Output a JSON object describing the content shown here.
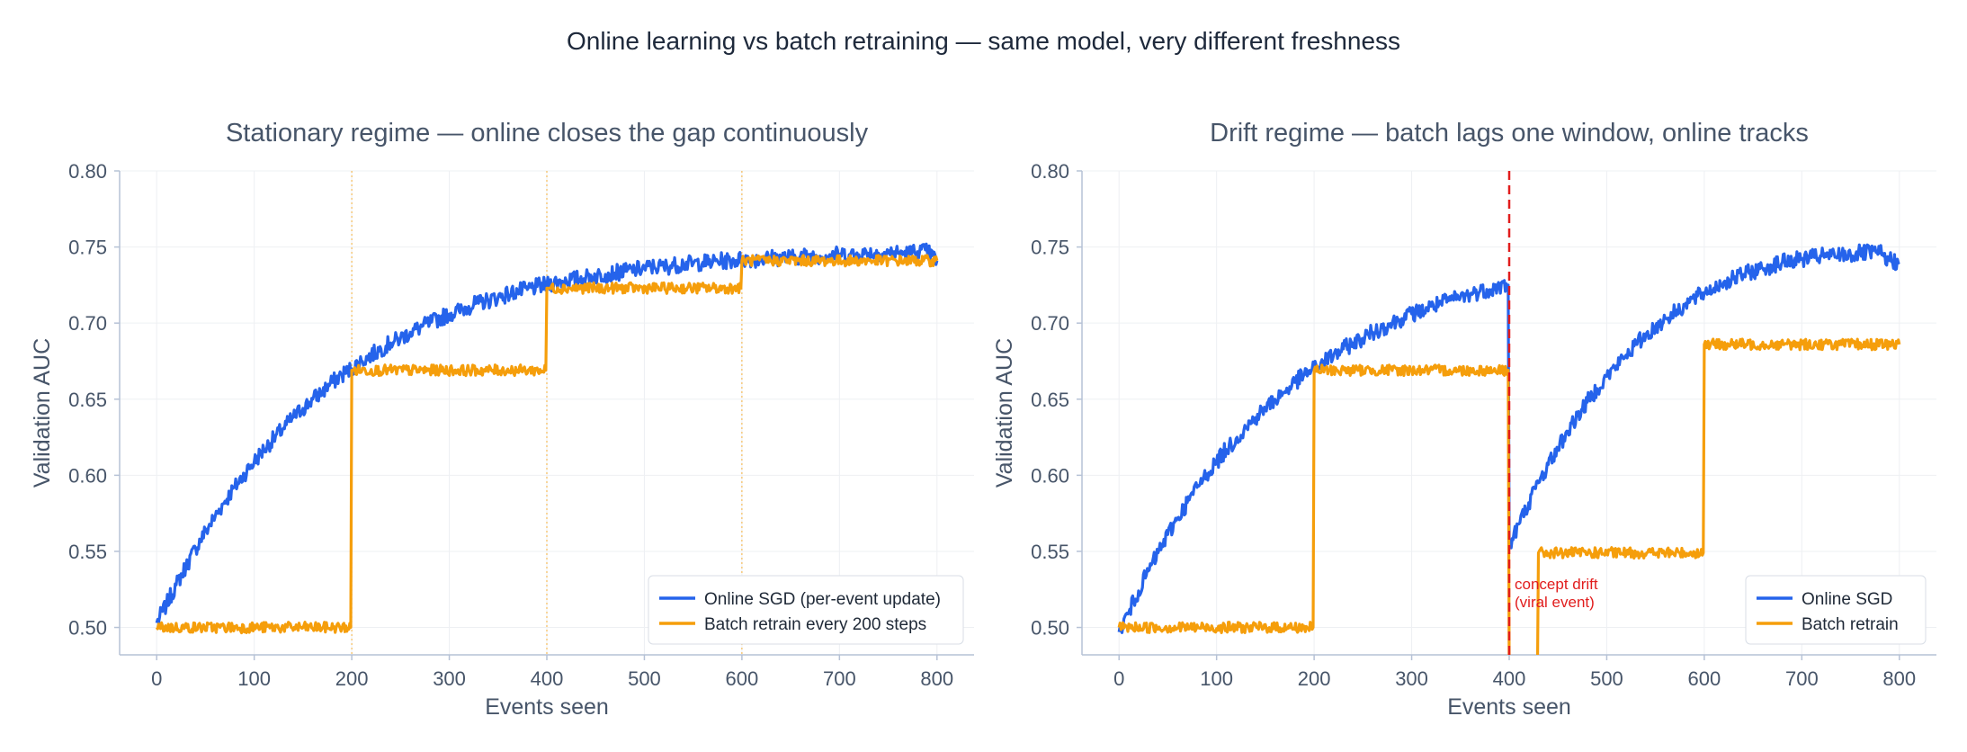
{
  "suptitle": "Online learning vs batch retraining — same model, very different freshness",
  "colors": {
    "online": "#2563eb",
    "batch": "#f59e0b",
    "drift": "#e11d1d",
    "grid": "#eef0f3",
    "axis": "#b6c2d6",
    "text": "#475569"
  },
  "chart_data": [
    {
      "type": "line",
      "title": "Stationary regime — online closes the gap continuously",
      "xlabel": "Events seen",
      "ylabel": "Validation AUC",
      "xlim": [
        -38,
        838
      ],
      "ylim": [
        0.482,
        0.8
      ],
      "xticks": [
        0,
        100,
        200,
        300,
        400,
        500,
        600,
        700,
        800
      ],
      "yticks": [
        0.5,
        0.55,
        0.6,
        0.65,
        0.7,
        0.75,
        0.8
      ],
      "grid": true,
      "legend_position": "lower-right",
      "retrain_markers": [
        200,
        400,
        600
      ],
      "series": [
        {
          "name": "Online SGD (per-event update)",
          "color": "#2563eb",
          "x": [
            0,
            10,
            20,
            30,
            40,
            50,
            60,
            70,
            80,
            90,
            100,
            110,
            120,
            130,
            140,
            150,
            160,
            170,
            180,
            190,
            200,
            210,
            220,
            230,
            240,
            250,
            260,
            270,
            280,
            290,
            300,
            310,
            320,
            330,
            340,
            350,
            360,
            370,
            380,
            390,
            400,
            410,
            420,
            430,
            440,
            450,
            460,
            470,
            480,
            490,
            500,
            510,
            520,
            530,
            540,
            550,
            560,
            570,
            580,
            590,
            600,
            610,
            620,
            630,
            640,
            650,
            660,
            670,
            680,
            690,
            700,
            710,
            720,
            730,
            740,
            750,
            760,
            770,
            780,
            790,
            800
          ],
          "values": [
            0.503,
            0.515,
            0.528,
            0.54,
            0.552,
            0.563,
            0.573,
            0.583,
            0.592,
            0.601,
            0.609,
            0.617,
            0.624,
            0.631,
            0.638,
            0.644,
            0.65,
            0.655,
            0.661,
            0.666,
            0.67,
            0.675,
            0.679,
            0.683,
            0.687,
            0.69,
            0.694,
            0.697,
            0.7,
            0.703,
            0.706,
            0.708,
            0.711,
            0.713,
            0.715,
            0.717,
            0.719,
            0.721,
            0.722,
            0.724,
            0.725,
            0.727,
            0.728,
            0.729,
            0.73,
            0.731,
            0.732,
            0.733,
            0.734,
            0.735,
            0.736,
            0.737,
            0.737,
            0.738,
            0.739,
            0.739,
            0.74,
            0.74,
            0.741,
            0.741,
            0.742,
            0.742,
            0.742,
            0.743,
            0.743,
            0.743,
            0.744,
            0.744,
            0.744,
            0.745,
            0.745,
            0.745,
            0.745,
            0.746,
            0.746,
            0.746,
            0.746,
            0.746,
            0.747,
            0.747,
            0.741
          ]
        },
        {
          "name": "Batch retrain every 200 steps",
          "color": "#f59e0b",
          "x": [
            0,
            199,
            200,
            399,
            400,
            599,
            600,
            800
          ],
          "values": [
            0.5,
            0.5,
            0.669,
            0.669,
            0.723,
            0.723,
            0.741,
            0.741
          ]
        }
      ]
    },
    {
      "type": "line",
      "title": "Drift regime — batch lags one window, online tracks",
      "xlabel": "Events seen",
      "ylabel": "Validation AUC",
      "xlim": [
        -38,
        838
      ],
      "ylim": [
        0.482,
        0.8
      ],
      "xticks": [
        0,
        100,
        200,
        300,
        400,
        500,
        600,
        700,
        800
      ],
      "yticks": [
        0.5,
        0.55,
        0.6,
        0.65,
        0.7,
        0.75,
        0.8
      ],
      "grid": true,
      "legend_position": "lower-right",
      "drift_at": 400,
      "annotation": [
        "concept drift",
        "(viral event)"
      ],
      "series": [
        {
          "name": "Online SGD",
          "color": "#2563eb",
          "x": [
            0,
            10,
            20,
            30,
            40,
            50,
            60,
            70,
            80,
            90,
            100,
            110,
            120,
            130,
            140,
            150,
            160,
            170,
            180,
            190,
            200,
            210,
            220,
            230,
            240,
            250,
            260,
            270,
            280,
            290,
            300,
            310,
            320,
            330,
            340,
            350,
            360,
            370,
            380,
            390,
            399,
            400,
            410,
            420,
            430,
            440,
            450,
            460,
            470,
            480,
            490,
            500,
            510,
            520,
            530,
            540,
            550,
            560,
            570,
            580,
            590,
            600,
            610,
            620,
            630,
            640,
            650,
            660,
            670,
            680,
            690,
            700,
            710,
            720,
            730,
            740,
            750,
            760,
            770,
            780,
            790,
            800
          ],
          "values": [
            0.497,
            0.51,
            0.524,
            0.537,
            0.549,
            0.561,
            0.572,
            0.582,
            0.592,
            0.601,
            0.609,
            0.617,
            0.624,
            0.631,
            0.638,
            0.644,
            0.65,
            0.655,
            0.661,
            0.666,
            0.67,
            0.675,
            0.679,
            0.683,
            0.687,
            0.69,
            0.694,
            0.697,
            0.7,
            0.703,
            0.706,
            0.708,
            0.711,
            0.713,
            0.715,
            0.717,
            0.719,
            0.721,
            0.722,
            0.724,
            0.725,
            0.553,
            0.568,
            0.582,
            0.595,
            0.607,
            0.618,
            0.629,
            0.639,
            0.648,
            0.657,
            0.665,
            0.672,
            0.679,
            0.686,
            0.692,
            0.697,
            0.703,
            0.707,
            0.712,
            0.716,
            0.72,
            0.723,
            0.727,
            0.729,
            0.732,
            0.734,
            0.736,
            0.738,
            0.74,
            0.741,
            0.742,
            0.743,
            0.744,
            0.744,
            0.745,
            0.745,
            0.746,
            0.746,
            0.746,
            0.741,
            0.74
          ]
        },
        {
          "name": "Batch retrain",
          "color": "#f59e0b",
          "x": [
            0,
            199,
            200,
            399,
            400,
            429,
            430,
            599,
            600,
            800
          ],
          "values": [
            0.5,
            0.5,
            0.669,
            0.669,
            0.47,
            0.47,
            0.549,
            0.549,
            0.686,
            0.686
          ]
        }
      ]
    }
  ]
}
